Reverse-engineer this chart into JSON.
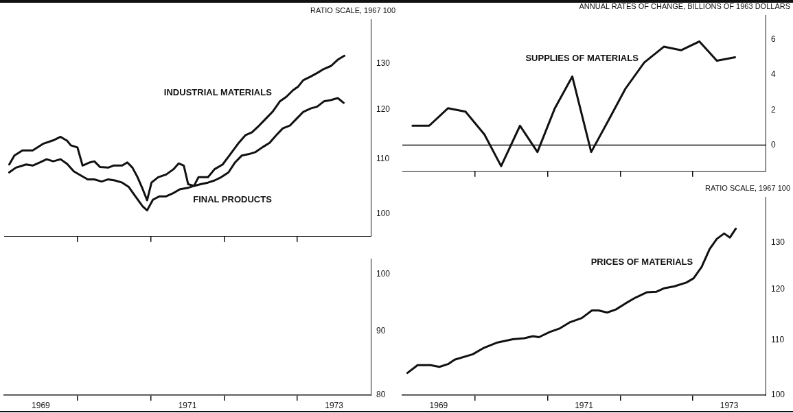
{
  "chart_data": [
    {
      "type": "line",
      "ylabel": "RATIO SCALE, 1967 100",
      "log": true,
      "tick_labels": "y",
      "xlim": [
        1969,
        1974
      ],
      "xticks": [
        {
          "value": 1970,
          "label": null
        },
        {
          "value": 1971,
          "label": null
        },
        {
          "value": 1972,
          "label": null
        },
        {
          "value": 1973,
          "label": null
        }
      ],
      "ylim": [
        96.1,
        140.5
      ],
      "yticks": [
        100,
        110,
        120,
        130
      ],
      "series": [
        {
          "name": "INDUSTRIAL MATERIALS",
          "color": "#111111",
          "x": [
            1969.07,
            1969.14,
            1969.25,
            1969.39,
            1969.53,
            1969.67,
            1969.77,
            1969.86,
            1969.91,
            1970.0,
            1970.07,
            1970.17,
            1970.23,
            1970.31,
            1970.42,
            1970.49,
            1970.61,
            1970.68,
            1970.75,
            1970.82,
            1970.89,
            1970.95,
            1971.01,
            1971.1,
            1971.21,
            1971.31,
            1971.38,
            1971.45,
            1971.51,
            1971.59,
            1971.65,
            1971.78,
            1971.87,
            1971.98,
            1972.06,
            1972.2,
            1972.29,
            1972.38,
            1972.48,
            1972.57,
            1972.66,
            1972.76,
            1972.85,
            1972.94,
            1973.01,
            1973.08,
            1973.18,
            1973.27,
            1973.36,
            1973.46,
            1973.55,
            1973.64
          ],
          "values": [
            109.0,
            110.7,
            111.7,
            111.7,
            113.0,
            113.7,
            114.4,
            113.6,
            112.7,
            112.3,
            108.8,
            109.4,
            109.6,
            108.5,
            108.4,
            108.8,
            108.8,
            109.4,
            108.4,
            106.6,
            104.4,
            102.4,
            105.6,
            106.6,
            107.1,
            108.1,
            109.2,
            108.8,
            105.3,
            105.0,
            106.6,
            106.6,
            108.1,
            109.0,
            110.5,
            113.2,
            114.7,
            115.3,
            116.7,
            118.1,
            119.5,
            121.7,
            122.7,
            124.1,
            124.9,
            126.3,
            127.1,
            127.9,
            128.8,
            129.5,
            130.9,
            131.8
          ]
        },
        {
          "name": "FINAL PRODUCTS",
          "color": "#111111",
          "x": [
            1969.07,
            1969.16,
            1969.3,
            1969.39,
            1969.49,
            1969.58,
            1969.67,
            1969.77,
            1969.86,
            1969.95,
            1970.05,
            1970.14,
            1970.23,
            1970.33,
            1970.42,
            1970.51,
            1970.61,
            1970.7,
            1970.79,
            1970.89,
            1970.95,
            1971.03,
            1971.12,
            1971.21,
            1971.31,
            1971.4,
            1971.5,
            1971.59,
            1971.68,
            1971.78,
            1971.87,
            1971.96,
            1972.06,
            1972.15,
            1972.24,
            1972.34,
            1972.43,
            1972.52,
            1972.62,
            1972.71,
            1972.8,
            1972.9,
            1972.99,
            1973.08,
            1973.18,
            1973.27,
            1973.36,
            1973.46,
            1973.55,
            1973.63
          ],
          "values": [
            107.5,
            108.4,
            109.0,
            108.8,
            109.4,
            110.0,
            109.6,
            110.0,
            109.1,
            107.7,
            106.9,
            106.2,
            106.2,
            105.8,
            106.2,
            106.0,
            105.6,
            104.8,
            103.1,
            101.3,
            100.6,
            102.5,
            103.1,
            103.1,
            103.7,
            104.4,
            104.6,
            105.0,
            105.3,
            105.6,
            106.0,
            106.6,
            107.5,
            109.4,
            110.7,
            111.0,
            111.4,
            112.3,
            113.2,
            114.7,
            116.1,
            116.7,
            118.1,
            119.5,
            120.2,
            120.6,
            121.7,
            122.0,
            122.4,
            121.4
          ]
        }
      ]
    },
    {
      "type": "line",
      "ylabel": "ANNUAL RATES OF CHANGE, BILLIONS OF 1963 DOLLARS",
      "tick_labels": "y",
      "xlim": [
        1969,
        1974
      ],
      "xticks": [
        {
          "value": 1970,
          "label": null
        },
        {
          "value": 1971,
          "label": null
        },
        {
          "value": 1972,
          "label": null
        },
        {
          "value": 1973,
          "label": null
        }
      ],
      "ylim": [
        -1.5,
        7.4
      ],
      "yticks": [
        0,
        2,
        4,
        6
      ],
      "ref_lines": [
        {
          "axis": "y",
          "value": 0,
          "color": "#111111"
        }
      ],
      "series": [
        {
          "name": "SUPPLIES OF MATERIALS",
          "color": "#111111",
          "x": [
            1969.14,
            1969.37,
            1969.63,
            1969.87,
            1970.13,
            1970.36,
            1970.62,
            1970.86,
            1971.1,
            1971.34,
            1971.6,
            1971.85,
            1972.07,
            1972.33,
            1972.6,
            1972.84,
            1973.09,
            1973.33,
            1973.58
          ],
          "values": [
            1.1,
            1.1,
            2.1,
            1.9,
            0.6,
            -1.2,
            1.1,
            -0.4,
            2.1,
            3.9,
            -0.4,
            1.5,
            3.2,
            4.7,
            5.6,
            5.4,
            5.9,
            4.8,
            5.0
          ]
        }
      ]
    },
    {
      "type": "line",
      "log": true,
      "xlim": [
        1969,
        1974
      ],
      "xticks": [
        {
          "value": 1969.5,
          "label": "1969"
        },
        {
          "value": 1970,
          "label": null
        },
        {
          "value": 1971,
          "label": null
        },
        {
          "value": 1971.5,
          "label": "1971"
        },
        {
          "value": 1972,
          "label": null
        },
        {
          "value": 1973,
          "label": null
        },
        {
          "value": 1973.5,
          "label": "1973"
        }
      ],
      "ylim": [
        80,
        102.9
      ],
      "yticks": [
        80,
        90,
        100
      ]
    },
    {
      "type": "line",
      "ylabel": "RATIO SCALE, 1967 100",
      "log": true,
      "xlim": [
        1969,
        1974
      ],
      "xticks": [
        {
          "value": 1969.5,
          "label": "1969"
        },
        {
          "value": 1970,
          "label": null
        },
        {
          "value": 1971,
          "label": null
        },
        {
          "value": 1971.5,
          "label": "1971"
        },
        {
          "value": 1972,
          "label": null
        },
        {
          "value": 1973,
          "label": null
        },
        {
          "value": 1973.5,
          "label": "1973"
        }
      ],
      "ylim": [
        100,
        140.7
      ],
      "yticks": [
        100,
        110,
        120,
        130
      ],
      "series": [
        {
          "name": "PRICES OF MATERIALS",
          "color": "#111111",
          "x": [
            1969.07,
            1969.21,
            1969.39,
            1969.51,
            1969.63,
            1969.72,
            1969.97,
            1970.11,
            1970.31,
            1970.52,
            1970.68,
            1970.8,
            1970.88,
            1971.03,
            1971.17,
            1971.31,
            1971.47,
            1971.61,
            1971.7,
            1971.82,
            1971.94,
            1972.07,
            1972.21,
            1972.37,
            1972.5,
            1972.6,
            1972.74,
            1972.91,
            1973.01,
            1973.12,
            1973.23,
            1973.33,
            1973.43,
            1973.51,
            1973.59
          ],
          "values": [
            103.9,
            105.3,
            105.3,
            105.0,
            105.5,
            106.3,
            107.3,
            108.4,
            109.5,
            110.1,
            110.3,
            110.7,
            110.5,
            111.5,
            112.2,
            113.4,
            114.2,
            115.7,
            115.7,
            115.3,
            115.9,
            117.1,
            118.3,
            119.4,
            119.5,
            120.2,
            120.6,
            121.4,
            122.3,
            124.7,
            128.6,
            130.9,
            132.1,
            131.2,
            133.2
          ]
        }
      ]
    }
  ]
}
